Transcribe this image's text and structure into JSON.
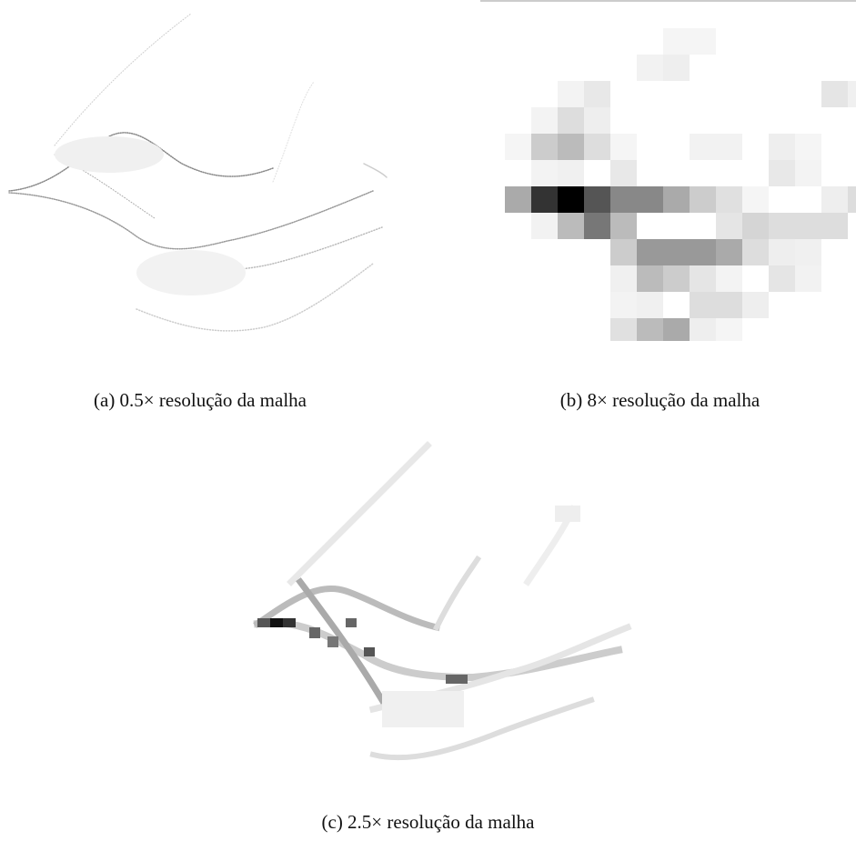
{
  "figures": [
    {
      "caption": "(a) 0.5× resolução da malha"
    },
    {
      "caption": "(b) 8× resolução da malha"
    },
    {
      "caption": "(c) 2.5× resolução da malha"
    }
  ]
}
